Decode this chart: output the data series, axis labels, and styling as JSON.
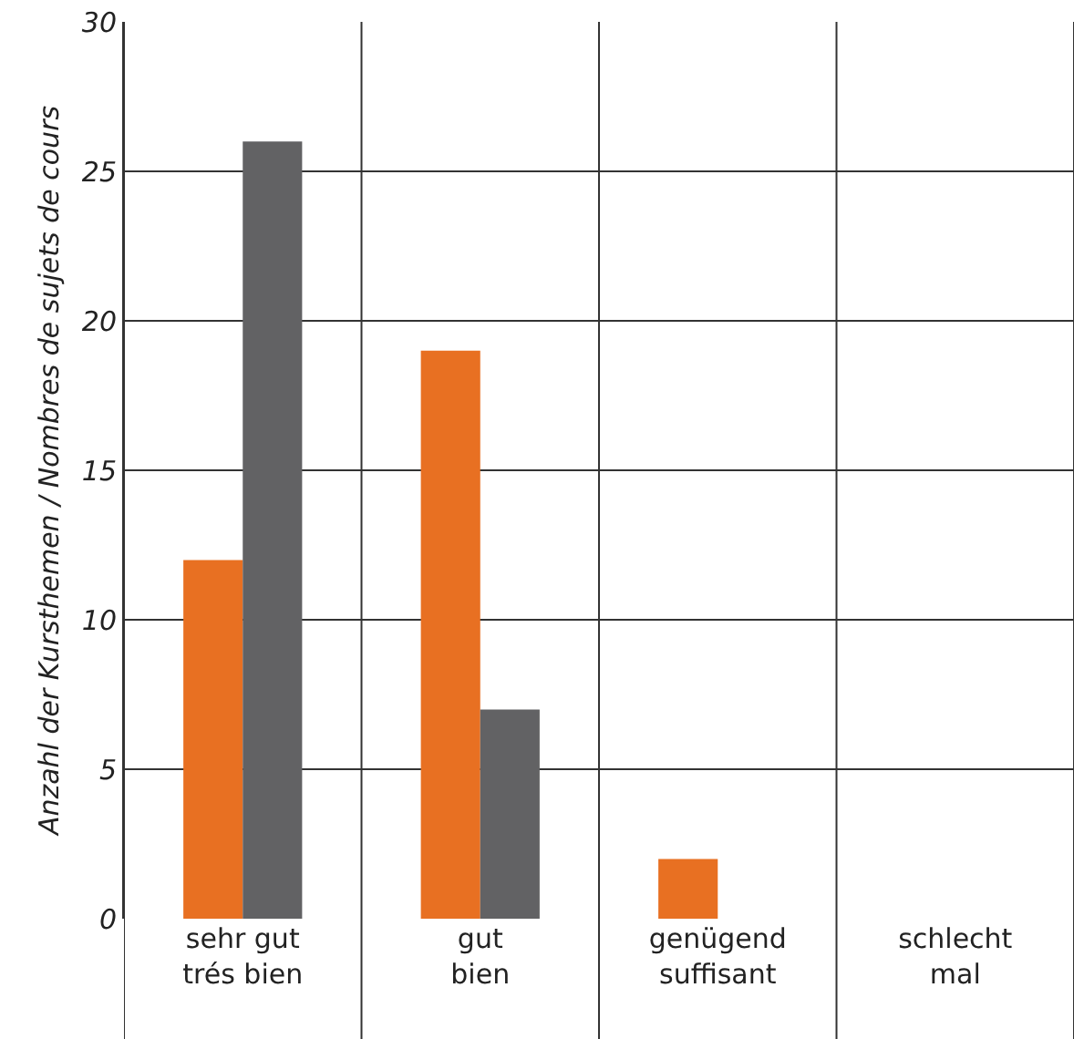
{
  "chart_data": {
    "type": "bar",
    "ylabel": "Anzahl der Kursthemen / Nombres de sujets de cours",
    "categories": [
      "sehr gut\ntrés bien",
      "gut\nbien",
      "genügend\nsuffisant",
      "schlecht\nmal"
    ],
    "series": [
      {
        "color": "#e87022",
        "values": [
          12,
          19,
          2,
          0
        ]
      },
      {
        "color": "#626264",
        "values": [
          26,
          7,
          0,
          0
        ]
      }
    ],
    "ylim": [
      0,
      30
    ],
    "yticks": [
      0,
      5,
      10,
      15,
      20,
      25,
      30
    ],
    "grid": true
  }
}
